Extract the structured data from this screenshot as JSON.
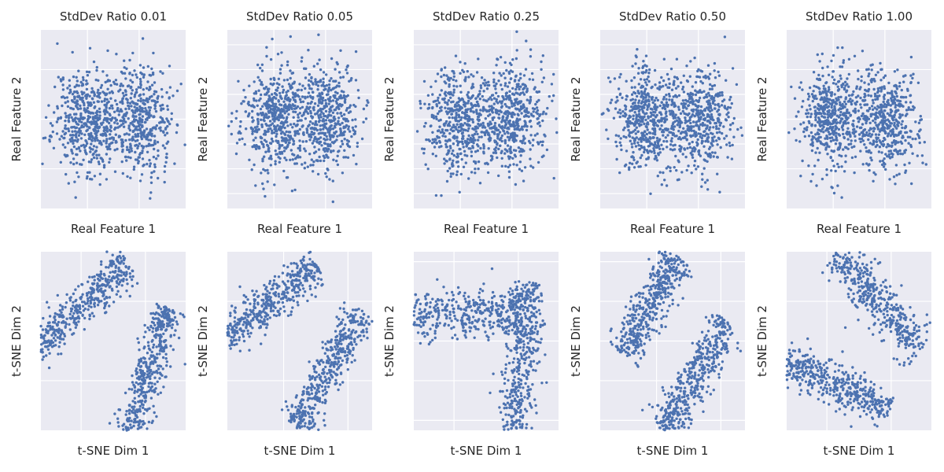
{
  "figure": {
    "panels": [
      {
        "id": "r1c1",
        "title": "StdDev Ratio 0.01",
        "xlabel": "Real Feature 1",
        "ylabel": "Real Feature 2",
        "kind": "blobs",
        "seed": 11,
        "xlim": [
          -4.2,
          4.2
        ],
        "ylim": [
          -3.6,
          3.6
        ],
        "xticks": [
          -1.5,
          1.5
        ],
        "yticks": [
          -2,
          0,
          2
        ]
      },
      {
        "id": "r1c2",
        "title": "StdDev Ratio 0.05",
        "xlabel": "Real Feature 1",
        "ylabel": "Real Feature 2",
        "kind": "blobs",
        "seed": 23,
        "xlim": [
          -4.2,
          4.2
        ],
        "ylim": [
          -3.6,
          3.6
        ],
        "xticks": [
          -1.5,
          1.5
        ],
        "yticks": [
          -3,
          -2,
          -1,
          0,
          1,
          2,
          3
        ]
      },
      {
        "id": "r1c3",
        "title": "StdDev Ratio 0.25",
        "xlabel": "Real Feature 1",
        "ylabel": "Real Feature 2",
        "kind": "blobs",
        "seed": 37,
        "xlim": [
          -4.2,
          4.2
        ],
        "ylim": [
          -3.6,
          3.6
        ],
        "xticks": [
          -1.5,
          1.5
        ],
        "yticks": [
          -3,
          -2,
          -1,
          0,
          1,
          2,
          3
        ]
      },
      {
        "id": "r1c4",
        "title": "StdDev Ratio 0.50",
        "xlabel": "Real Feature 1",
        "ylabel": "Real Feature 2",
        "kind": "blobs",
        "seed": 41,
        "xlim": [
          -4.2,
          4.2
        ],
        "ylim": [
          -3.6,
          3.6
        ],
        "xticks": [
          -1.5,
          1.5
        ],
        "yticks": [
          -3,
          -2,
          -1,
          0,
          1,
          2,
          3
        ]
      },
      {
        "id": "r1c5",
        "title": "StdDev Ratio 1.00",
        "xlabel": "Real Feature 1",
        "ylabel": "Real Feature 2",
        "kind": "blobs",
        "seed": 53,
        "xlim": [
          -4.2,
          4.2
        ],
        "ylim": [
          -3.6,
          3.6
        ],
        "xticks": [
          -1.5,
          1.5
        ],
        "yticks": [
          -2,
          0,
          2
        ]
      },
      {
        "id": "r2c1",
        "title": "",
        "xlabel": "t-SNE Dim 1",
        "ylabel": "t-SNE Dim 2",
        "kind": "tsne",
        "seed": 61,
        "variant": 1,
        "xlim": [
          -45,
          45
        ],
        "ylim": [
          -45,
          45
        ],
        "xticks": [
          -20,
          20
        ],
        "yticks": [
          -20,
          20
        ]
      },
      {
        "id": "r2c2",
        "title": "",
        "xlabel": "t-SNE Dim 1",
        "ylabel": "t-SNE Dim 2",
        "kind": "tsne",
        "seed": 73,
        "variant": 2,
        "xlim": [
          -45,
          45
        ],
        "ylim": [
          -45,
          45
        ],
        "xticks": [
          -10,
          30
        ],
        "yticks": [
          -20,
          20
        ]
      },
      {
        "id": "r2c3",
        "title": "",
        "xlabel": "t-SNE Dim 1",
        "ylabel": "t-SNE Dim 2",
        "kind": "tsne",
        "seed": 89,
        "variant": 3,
        "xlim": [
          -45,
          45
        ],
        "ylim": [
          -45,
          45
        ],
        "xticks": [
          -20,
          20
        ],
        "yticks": [
          -40,
          -20,
          0,
          20,
          40
        ]
      },
      {
        "id": "r2c4",
        "title": "",
        "xlabel": "t-SNE Dim 1",
        "ylabel": "t-SNE Dim 2",
        "kind": "tsne",
        "seed": 97,
        "variant": 4,
        "xlim": [
          -45,
          45
        ],
        "ylim": [
          -45,
          45
        ],
        "xticks": [
          -10,
          30
        ],
        "yticks": [
          -40,
          -20,
          0,
          20,
          40
        ]
      },
      {
        "id": "r2c5",
        "title": "",
        "xlabel": "t-SNE Dim 1",
        "ylabel": "t-SNE Dim 2",
        "kind": "tsne",
        "seed": 101,
        "variant": 5,
        "xlim": [
          -45,
          45
        ],
        "ylim": [
          -45,
          45
        ],
        "xticks": [
          -20,
          20
        ],
        "yticks": [
          -20,
          20
        ]
      }
    ]
  },
  "chart_data": [
    {
      "type": "scatter",
      "title": "StdDev Ratio 0.01",
      "xlabel": "Real Feature 1",
      "ylabel": "Real Feature 2",
      "series": [
        {
          "points": "≈1000 points, two Gaussian clusters centered near (-1.5,0) and (1.5,0)"
        }
      ]
    },
    {
      "type": "scatter",
      "title": "StdDev Ratio 0.05",
      "xlabel": "Real Feature 1",
      "ylabel": "Real Feature 2",
      "series": [
        {
          "points": "≈1000 points, two Gaussian clusters"
        }
      ]
    },
    {
      "type": "scatter",
      "title": "StdDev Ratio 0.25",
      "xlabel": "Real Feature 1",
      "ylabel": "Real Feature 2",
      "series": [
        {
          "points": "≈1000 points, two Gaussian clusters"
        }
      ]
    },
    {
      "type": "scatter",
      "title": "StdDev Ratio 0.50",
      "xlabel": "Real Feature 1",
      "ylabel": "Real Feature 2",
      "series": [
        {
          "points": "≈1000 points, two Gaussian clusters"
        }
      ]
    },
    {
      "type": "scatter",
      "title": "StdDev Ratio 1.00",
      "xlabel": "Real Feature 1",
      "ylabel": "Real Feature 2",
      "series": [
        {
          "points": "≈1000 points, two Gaussian clusters"
        }
      ]
    },
    {
      "type": "scatter",
      "xlabel": "t-SNE Dim 1",
      "ylabel": "t-SNE Dim 2",
      "series": [
        {
          "points": "two elongated clusters"
        }
      ]
    },
    {
      "type": "scatter",
      "xlabel": "t-SNE Dim 1",
      "ylabel": "t-SNE Dim 2",
      "series": [
        {
          "points": "two elongated clusters"
        }
      ]
    },
    {
      "type": "scatter",
      "xlabel": "t-SNE Dim 1",
      "ylabel": "t-SNE Dim 2",
      "series": [
        {
          "points": "two curved clusters"
        }
      ]
    },
    {
      "type": "scatter",
      "xlabel": "t-SNE Dim 1",
      "ylabel": "t-SNE Dim 2",
      "series": [
        {
          "points": "two elongated clusters"
        }
      ]
    },
    {
      "type": "scatter",
      "xlabel": "t-SNE Dim 1",
      "ylabel": "t-SNE Dim 2",
      "series": [
        {
          "points": "two elongated clusters"
        }
      ]
    }
  ],
  "style": {
    "plot_bg": "#eaeaf2",
    "grid": "#ffffff",
    "point": "#4c72b0",
    "text": "#262626"
  }
}
